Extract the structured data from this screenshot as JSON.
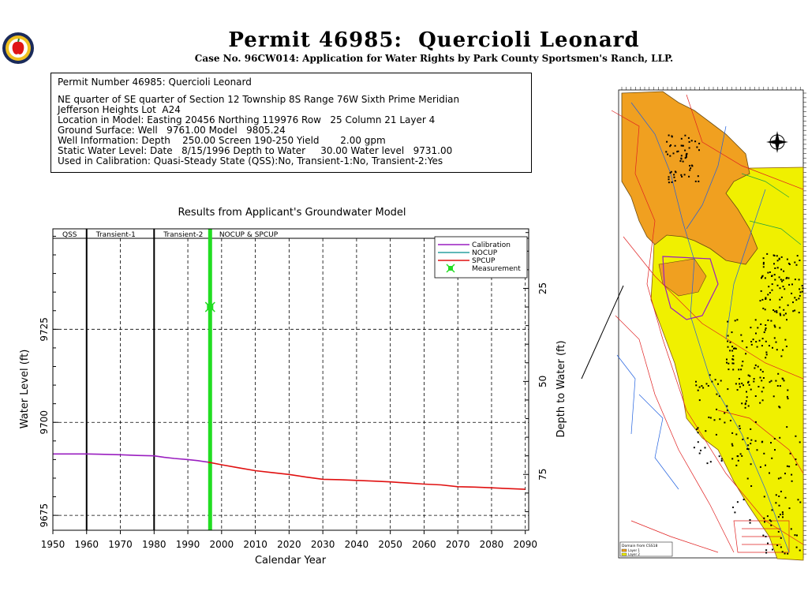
{
  "header": {
    "title": "Permit 46985:  Quercioli Leonard",
    "subtitle": "Case No. 96CW014: Application for Water Rights by Park County Sportsmen's Ranch, LLP."
  },
  "info": {
    "line1": "Permit Number 46985: Quercioli Leonard",
    "line2": "NE quarter of SE quarter of Section 12 Township 8S Range 76W Sixth Prime Meridian",
    "line3": "Jefferson Heights Lot  A24",
    "line4": "Location in Model: Easting 20456 Northing 119976 Row   25 Column 21 Layer 4",
    "line5": "Ground Surface: Well   9761.00 Model   9805.24",
    "line6": "Well Information: Depth    250.00 Screen 190-250 Yield       2.00 gpm",
    "line7": "Static Water Level: Date   8/15/1996 Depth to Water     30.00 Water level   9731.00",
    "line8": "Used in Calibration: Quasi-Steady State (QSS):No, Transient-1:No, Transient-2:Yes"
  },
  "colors": {
    "calibration": "#9a1fc0",
    "nocup": "#2aa0a0",
    "spcup": "#e01010",
    "measurement": "#22dd22",
    "layer1": "#f0a020",
    "layer2": "#f0f000"
  },
  "chart_data": {
    "type": "line",
    "title": "Results from Applicant's Groundwater Model",
    "xlabel": "Calendar Year",
    "ylabel": "Water Level (ft)",
    "y2label": "Depth to Water (ft)",
    "xlim": [
      1950,
      2091
    ],
    "ylim": [
      9671,
      9752
    ],
    "y2lim": [
      9,
      90
    ],
    "xticks": [
      1950,
      1960,
      1970,
      1980,
      1990,
      2000,
      2010,
      2020,
      2030,
      2040,
      2050,
      2060,
      2070,
      2080,
      2090
    ],
    "yticks": [
      9675,
      9700,
      9725
    ],
    "y2ticks": [
      25,
      50,
      75
    ],
    "periods": [
      {
        "label": "QSS",
        "start": 1950,
        "end": 1960
      },
      {
        "label": "Transient-1",
        "start": 1960,
        "end": 1980
      },
      {
        "label": "Transient-2",
        "start": 1980,
        "end": 1996.5
      },
      {
        "label": "NOCUP  &  SPCUP",
        "start": 1996.5,
        "end": 2091
      }
    ],
    "marker_year": 1996.6,
    "series": [
      {
        "name": "Calibration",
        "color": "#9a1fc0",
        "x": [
          1950,
          1960,
          1970,
          1975,
          1980,
          1983,
          1986,
          1990,
          1993,
          1996
        ],
        "y": [
          9691.5,
          9691.5,
          9691.3,
          9691.1,
          9691.0,
          9690.6,
          9690.3,
          9690.0,
          9689.7,
          9689.3
        ]
      },
      {
        "name": "NOCUP",
        "color": "#2aa0a0",
        "x": [],
        "y": []
      },
      {
        "name": "SPCUP",
        "color": "#e01010",
        "x": [
          1996,
          2000,
          2005,
          2010,
          2015,
          2020,
          2025,
          2030,
          2035,
          2040,
          2045,
          2050,
          2055,
          2060,
          2065,
          2070,
          2075,
          2080,
          2085,
          2090
        ],
        "y": [
          9689.3,
          9688.6,
          9687.8,
          9687.0,
          9686.5,
          9686.0,
          9685.3,
          9684.7,
          9684.6,
          9684.4,
          9684.2,
          9684.0,
          9683.7,
          9683.4,
          9683.2,
          9682.7,
          9682.6,
          9682.4,
          9682.2,
          9682.0
        ]
      },
      {
        "name": "Measurement",
        "color": "#22dd22",
        "x": [
          1996.6
        ],
        "y": [
          9731.0
        ]
      }
    ]
  },
  "map": {
    "legend_title": "Domain from CSS18",
    "legend_items": [
      "Layer 1",
      "Layer 2"
    ]
  }
}
